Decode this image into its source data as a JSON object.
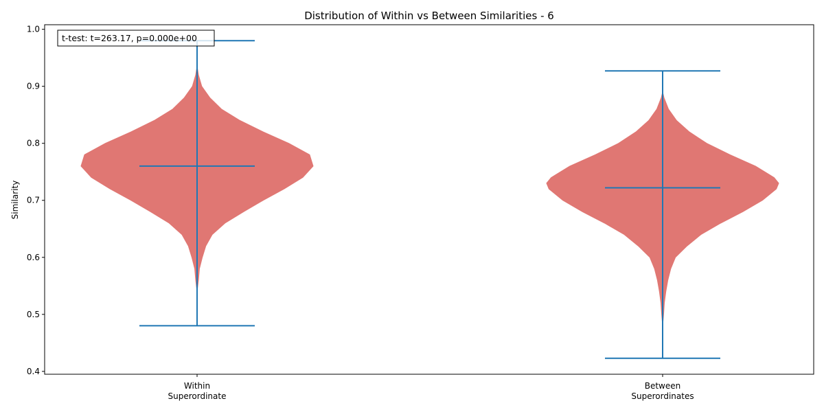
{
  "chart_data": {
    "type": "violin",
    "title": "Distribution of Within vs Between Similarities - 6",
    "xlabel": "",
    "ylabel": "Similarity",
    "ylim": [
      0.395,
      1.008
    ],
    "yticks": [
      0.4,
      0.5,
      0.6,
      0.7,
      0.8,
      0.9,
      1.0
    ],
    "ytick_labels": [
      "0.4",
      "0.5",
      "0.6",
      "0.7",
      "0.8",
      "0.9",
      "1.0"
    ],
    "grid": false,
    "fill_color": "#e07773",
    "line_color": "#1f77b4",
    "annotation": "t-test: t=263.17, p=0.000e+00",
    "groups": [
      {
        "label_lines": [
          "Within",
          "Superordinate"
        ],
        "min": 0.48,
        "max": 0.98,
        "mean": 0.76,
        "density": [
          [
            0.54,
            0.0
          ],
          [
            0.56,
            0.012
          ],
          [
            0.58,
            0.02
          ],
          [
            0.6,
            0.045
          ],
          [
            0.62,
            0.075
          ],
          [
            0.64,
            0.13
          ],
          [
            0.66,
            0.24
          ],
          [
            0.68,
            0.4
          ],
          [
            0.7,
            0.57
          ],
          [
            0.72,
            0.75
          ],
          [
            0.74,
            0.91
          ],
          [
            0.76,
            1.0
          ],
          [
            0.78,
            0.97
          ],
          [
            0.8,
            0.79
          ],
          [
            0.82,
            0.57
          ],
          [
            0.84,
            0.37
          ],
          [
            0.86,
            0.21
          ],
          [
            0.88,
            0.11
          ],
          [
            0.9,
            0.04
          ],
          [
            0.92,
            0.012
          ],
          [
            0.935,
            0.0
          ]
        ]
      },
      {
        "label_lines": [
          "Between",
          "Superordinates"
        ],
        "min": 0.423,
        "max": 0.927,
        "mean": 0.722,
        "density": [
          [
            0.48,
            0.0
          ],
          [
            0.5,
            0.008
          ],
          [
            0.52,
            0.015
          ],
          [
            0.54,
            0.028
          ],
          [
            0.56,
            0.045
          ],
          [
            0.58,
            0.07
          ],
          [
            0.6,
            0.11
          ],
          [
            0.62,
            0.21
          ],
          [
            0.64,
            0.33
          ],
          [
            0.66,
            0.5
          ],
          [
            0.68,
            0.69
          ],
          [
            0.7,
            0.86
          ],
          [
            0.72,
            0.98
          ],
          [
            0.73,
            1.0
          ],
          [
            0.74,
            0.96
          ],
          [
            0.76,
            0.8
          ],
          [
            0.78,
            0.58
          ],
          [
            0.8,
            0.38
          ],
          [
            0.82,
            0.23
          ],
          [
            0.84,
            0.12
          ],
          [
            0.86,
            0.05
          ],
          [
            0.88,
            0.012
          ],
          [
            0.89,
            0.0
          ]
        ]
      }
    ]
  }
}
